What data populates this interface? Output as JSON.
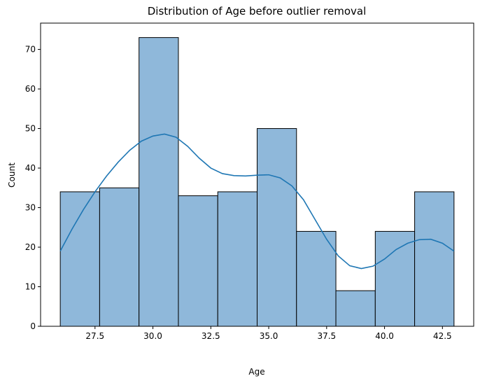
{
  "chart_data": {
    "type": "bar",
    "title": "Distribution of Age before outlier removal",
    "xlabel": "Age",
    "ylabel": "Count",
    "xlim": [
      25.15,
      43.85
    ],
    "ylim": [
      0,
      76.65
    ],
    "bins": [
      {
        "start": 26.0,
        "end": 27.7,
        "count": 34
      },
      {
        "start": 27.7,
        "end": 29.4,
        "count": 35
      },
      {
        "start": 29.4,
        "end": 31.1,
        "count": 73
      },
      {
        "start": 31.1,
        "end": 32.8,
        "count": 33
      },
      {
        "start": 32.8,
        "end": 34.5,
        "count": 34
      },
      {
        "start": 34.5,
        "end": 36.2,
        "count": 50
      },
      {
        "start": 36.2,
        "end": 37.9,
        "count": 24
      },
      {
        "start": 37.9,
        "end": 39.6,
        "count": 9
      },
      {
        "start": 39.6,
        "end": 41.3,
        "count": 24
      },
      {
        "start": 41.3,
        "end": 43.0,
        "count": 34
      }
    ],
    "kde": {
      "x": [
        26.0,
        26.5,
        27.0,
        27.5,
        28.0,
        28.5,
        29.0,
        29.5,
        30.0,
        30.5,
        31.0,
        31.5,
        32.0,
        32.5,
        33.0,
        33.5,
        34.0,
        34.5,
        35.0,
        35.5,
        36.0,
        36.5,
        37.0,
        37.5,
        38.0,
        38.5,
        39.0,
        39.5,
        40.0,
        40.5,
        41.0,
        41.5,
        42.0,
        42.5,
        43.0
      ],
      "y": [
        19.0,
        24.5,
        29.5,
        34.0,
        38.0,
        41.5,
        44.5,
        46.8,
        48.1,
        48.6,
        47.8,
        45.5,
        42.5,
        40.0,
        38.6,
        38.1,
        38.0,
        38.2,
        38.3,
        37.5,
        35.5,
        32.0,
        27.0,
        22.0,
        17.8,
        15.3,
        14.6,
        15.2,
        17.0,
        19.4,
        21.0,
        21.9,
        22.0,
        21.0,
        19.0
      ]
    },
    "xticks": [
      27.5,
      30.0,
      32.5,
      35.0,
      37.5,
      40.0,
      42.5
    ],
    "xtick_labels": [
      "27.5",
      "30.0",
      "32.5",
      "35.0",
      "37.5",
      "40.0",
      "42.5"
    ],
    "yticks": [
      0,
      10,
      20,
      30,
      40,
      50,
      60,
      70
    ],
    "ytick_labels": [
      "0",
      "10",
      "20",
      "30",
      "40",
      "50",
      "60",
      "70"
    ],
    "grid": false,
    "colors": {
      "bar_fill": "#8fb8da",
      "bar_edge": "#000000",
      "kde_line": "#1f77b4"
    }
  }
}
